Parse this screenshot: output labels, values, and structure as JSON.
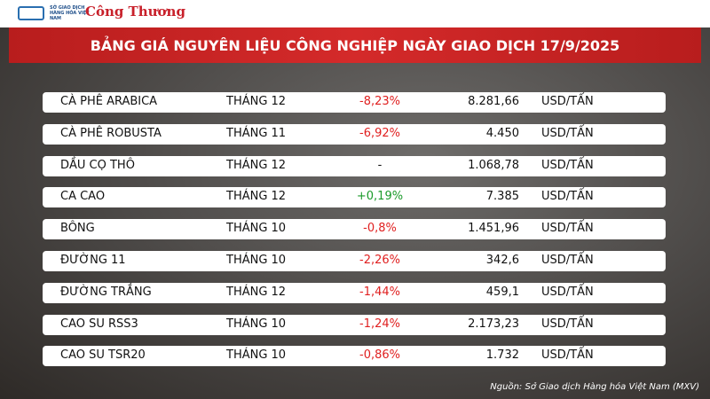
{
  "header": {
    "logo_mxv": "SỞ GIAO DỊCH HÀNG HÓA VIỆT NAM",
    "logo_ct": "Công Thương",
    "title": "BẢNG GIÁ NGUYÊN LIỆU CÔNG NGHIỆP NGÀY GIAO DỊCH 17/9/2025"
  },
  "table": {
    "rows": [
      [
        "CÀ PHÊ ARABICA",
        "THÁNG 12",
        "-8,23%",
        "8.281,66",
        "USD/TẤN"
      ],
      [
        "CÀ PHÊ ROBUSTA",
        "THÁNG 11",
        "-6,92%",
        "4.450",
        "USD/TẤN"
      ],
      [
        "DẦU CỌ THÔ",
        "THÁNG 12",
        "-",
        "1.068,78",
        "USD/TẤN"
      ],
      [
        "CA CAO",
        "THÁNG 12",
        "+0,19%",
        "7.385",
        "USD/TẤN"
      ],
      [
        "BÔNG",
        "THÁNG 10",
        "-0,8%",
        "1.451,96",
        "USD/TẤN"
      ],
      [
        "ĐƯỜNG 11",
        "THÁNG 10",
        "-2,26%",
        "342,6",
        "USD/TẤN"
      ],
      [
        "ĐƯỜNG TRẮNG",
        "THÁNG 12",
        "-1,44%",
        "459,1",
        "USD/TẤN"
      ],
      [
        "CAO SU RSS3",
        "THÁNG 10",
        "-1,24%",
        "2.173,23",
        "USD/TẤN"
      ],
      [
        "CAO SU TSR20",
        "THÁNG 10",
        "-0,86%",
        "1.732",
        "USD/TẤN"
      ]
    ]
  },
  "source": "Nguồn: Sở Giao dịch Hàng hóa Việt Nam (MXV)"
}
